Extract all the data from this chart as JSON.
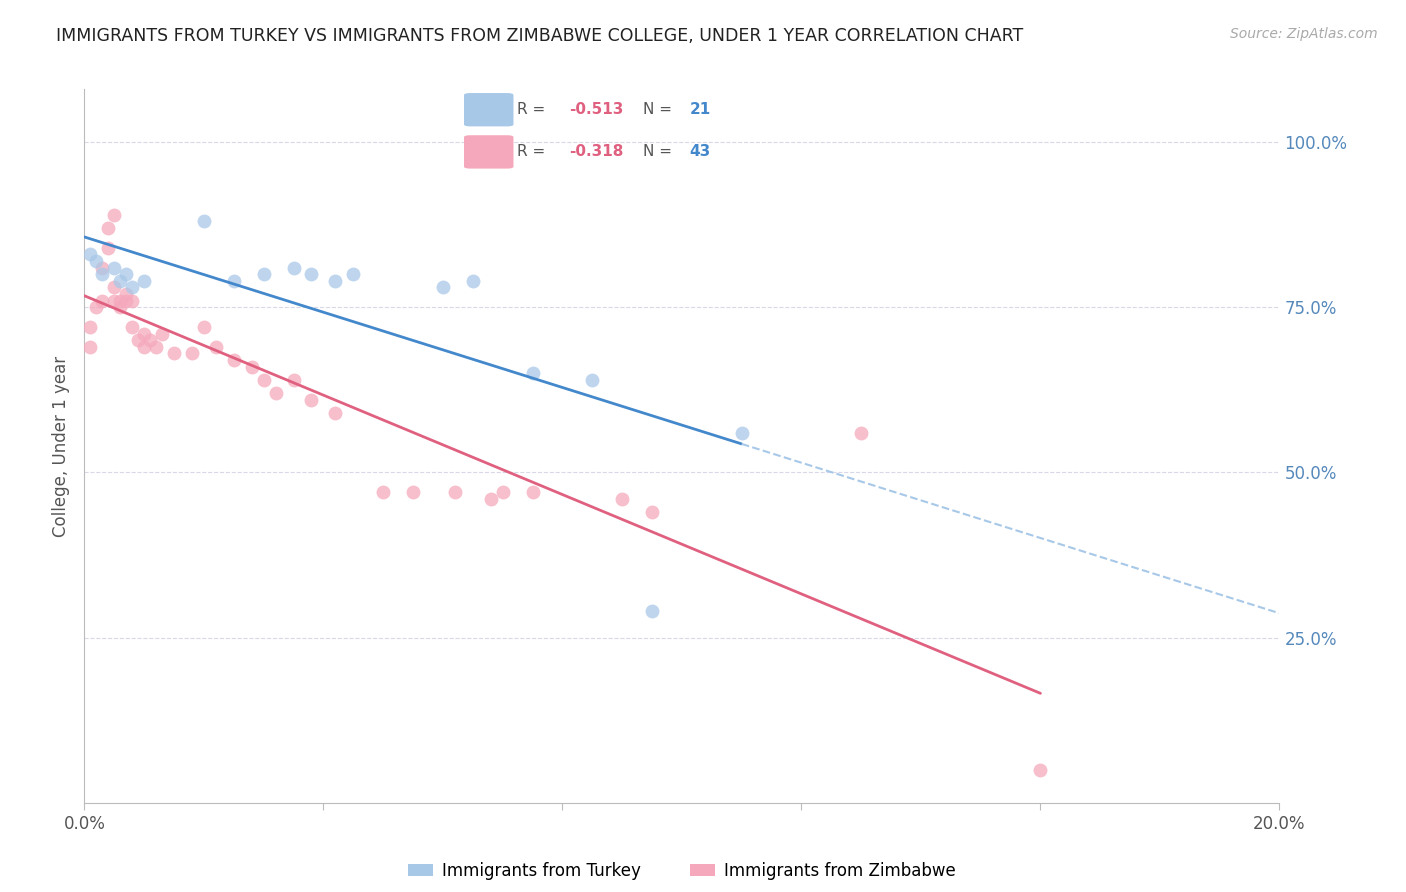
{
  "title": "IMMIGRANTS FROM TURKEY VS IMMIGRANTS FROM ZIMBABWE COLLEGE, UNDER 1 YEAR CORRELATION CHART",
  "source": "Source: ZipAtlas.com",
  "ylabel": "College, Under 1 year",
  "legend_turkey": "Immigrants from Turkey",
  "legend_zimbabwe": "Immigrants from Zimbabwe",
  "R_turkey": -0.513,
  "N_turkey": 21,
  "R_zimbabwe": -0.318,
  "N_zimbabwe": 43,
  "color_turkey": "#a8c8e8",
  "color_zimbabwe": "#f5a8bc",
  "trend_turkey": "#4488cc",
  "trend_zimbabwe": "#e06080",
  "xlim": [
    0.0,
    0.2
  ],
  "ylim": [
    0.0,
    1.08
  ],
  "right_yticks": [
    0.25,
    0.5,
    0.75,
    1.0
  ],
  "right_yticklabels": [
    "25.0%",
    "50.0%",
    "75.0%",
    "100.0%"
  ],
  "xticks": [
    0.0,
    0.04,
    0.08,
    0.12,
    0.16,
    0.2
  ],
  "turkey_x": [
    0.001,
    0.002,
    0.003,
    0.005,
    0.006,
    0.007,
    0.008,
    0.01,
    0.02,
    0.025,
    0.03,
    0.035,
    0.038,
    0.042,
    0.045,
    0.06,
    0.065,
    0.075,
    0.085,
    0.095,
    0.11
  ],
  "turkey_y": [
    0.83,
    0.82,
    0.8,
    0.81,
    0.79,
    0.8,
    0.78,
    0.79,
    0.88,
    0.79,
    0.8,
    0.81,
    0.8,
    0.79,
    0.8,
    0.78,
    0.79,
    0.65,
    0.64,
    0.29,
    0.56
  ],
  "zimbabwe_x": [
    0.001,
    0.001,
    0.002,
    0.003,
    0.003,
    0.004,
    0.004,
    0.005,
    0.005,
    0.005,
    0.006,
    0.006,
    0.007,
    0.007,
    0.008,
    0.008,
    0.009,
    0.01,
    0.01,
    0.011,
    0.012,
    0.013,
    0.015,
    0.018,
    0.02,
    0.022,
    0.025,
    0.028,
    0.03,
    0.032,
    0.035,
    0.038,
    0.042,
    0.05,
    0.055,
    0.062,
    0.068,
    0.07,
    0.075,
    0.09,
    0.095,
    0.13,
    0.16
  ],
  "zimbabwe_y": [
    0.69,
    0.72,
    0.75,
    0.76,
    0.81,
    0.84,
    0.87,
    0.89,
    0.76,
    0.78,
    0.75,
    0.76,
    0.76,
    0.77,
    0.76,
    0.72,
    0.7,
    0.71,
    0.69,
    0.7,
    0.69,
    0.71,
    0.68,
    0.68,
    0.72,
    0.69,
    0.67,
    0.66,
    0.64,
    0.62,
    0.64,
    0.61,
    0.59,
    0.47,
    0.47,
    0.47,
    0.46,
    0.47,
    0.47,
    0.46,
    0.44,
    0.56,
    0.05
  ],
  "background_color": "#ffffff",
  "grid_color": "#d8d8e8",
  "title_color": "#222222",
  "source_color": "#aaaaaa",
  "right_axis_color": "#5588bb"
}
